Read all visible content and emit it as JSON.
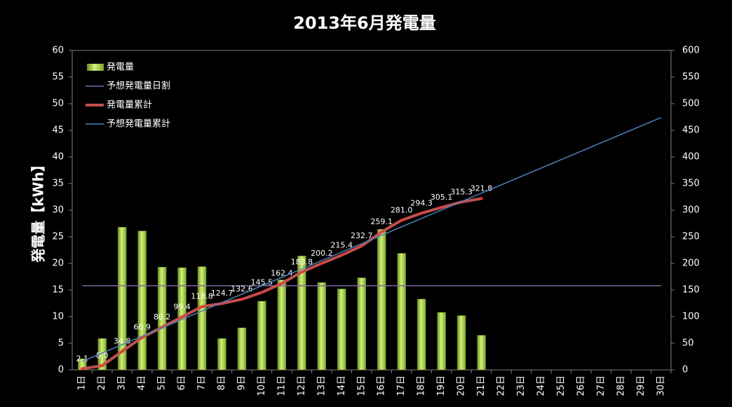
{
  "chart_data": {
    "type": "bar",
    "title": "2013年6月発電量",
    "y_label": "発電量【kWh】",
    "categories": [
      "1日",
      "2日",
      "3日",
      "4日",
      "5日",
      "6日",
      "7日",
      "8日",
      "9日",
      "10日",
      "11日",
      "12日",
      "13日",
      "14日",
      "15日",
      "16日",
      "17日",
      "18日",
      "19日",
      "20日",
      "21日",
      "22日",
      "23日",
      "24日",
      "25日",
      "26日",
      "27日",
      "28日",
      "29日",
      "30日"
    ],
    "series": [
      {
        "name": "発電量",
        "type": "bar",
        "color": "#9acd32",
        "values": [
          2.1,
          5.9,
          26.8,
          26.1,
          19.3,
          19.2,
          19.4,
          5.9,
          7.9,
          12.9,
          16.9,
          21.4,
          16.4,
          15.2,
          17.3,
          26.4,
          21.9,
          13.3,
          10.8,
          10.2,
          6.5,
          null,
          null,
          null,
          null,
          null,
          null,
          null,
          null,
          null
        ]
      },
      {
        "name": "予想発電量日割",
        "type": "line",
        "color": "#8064a2",
        "values": [
          15.8,
          15.8,
          15.8,
          15.8,
          15.8,
          15.8,
          15.8,
          15.8,
          15.8,
          15.8,
          15.8,
          15.8,
          15.8,
          15.8,
          15.8,
          15.8,
          15.8,
          15.8,
          15.8,
          15.8,
          15.8,
          15.8,
          15.8,
          15.8,
          15.8,
          15.8,
          15.8,
          15.8,
          15.8,
          15.8
        ]
      },
      {
        "name": "発電量累計",
        "type": "line",
        "axis": "y2",
        "color": "#c0504d",
        "values": [
          2.1,
          8.0,
          34.8,
          60.9,
          80.2,
          99.4,
          118.8,
          124.7,
          132.6,
          145.5,
          162.4,
          183.8,
          200.2,
          215.4,
          232.7,
          259.1,
          281.0,
          294.3,
          305.1,
          315.3,
          321.8,
          null,
          null,
          null,
          null,
          null,
          null,
          null,
          null,
          null
        ],
        "value_labels": [
          "2.1",
          "8.0",
          "34.8",
          "60.9",
          "80.2",
          "99.4",
          "118.8",
          "124.7",
          "132.6",
          "145.5",
          "162.4",
          "183.8",
          "200.2",
          "215.4",
          "232.7",
          "259.1",
          "281.0",
          "294.3",
          "305.1",
          "315.3",
          "321.8",
          null,
          null,
          null,
          null,
          null,
          null,
          null,
          null,
          null
        ]
      },
      {
        "name": "予想発電量累計",
        "type": "line",
        "axis": "y2",
        "color": "#4f81bd",
        "values": [
          15.8,
          31.6,
          47.4,
          63.2,
          79,
          94.8,
          110.6,
          126.4,
          142.2,
          158,
          173.8,
          189.6,
          205.4,
          221.2,
          237,
          252.8,
          268.6,
          284.4,
          300.2,
          316,
          331.8,
          347.6,
          363.4,
          379.2,
          395,
          410.8,
          426.6,
          442.4,
          458.2,
          474
        ]
      }
    ],
    "ylim": [
      0,
      60
    ],
    "yticks": [
      0,
      5,
      10,
      15,
      20,
      25,
      30,
      35,
      40,
      45,
      50,
      55,
      60
    ],
    "y2lim": [
      0,
      600
    ],
    "y2ticks": [
      0,
      50,
      100,
      150,
      200,
      250,
      300,
      350,
      400,
      450,
      500,
      550,
      600
    ],
    "legend": "top-left"
  }
}
